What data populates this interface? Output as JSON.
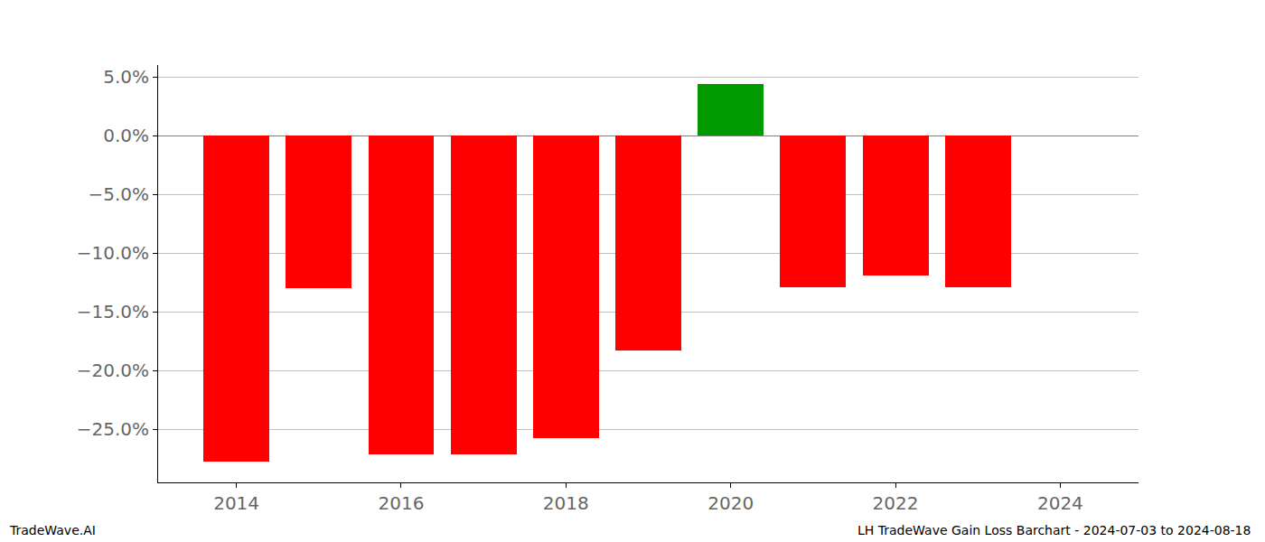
{
  "chart_data": {
    "type": "bar",
    "x": [
      2014,
      2015,
      2016,
      2017,
      2018,
      2019,
      2020,
      2021,
      2022,
      2023
    ],
    "values": [
      -27.7,
      -13.0,
      -27.1,
      -27.1,
      -25.7,
      -18.3,
      4.4,
      -12.9,
      -11.9,
      -12.9
    ],
    "colors": [
      "#ff0000",
      "#ff0000",
      "#ff0000",
      "#ff0000",
      "#ff0000",
      "#ff0000",
      "#009900",
      "#ff0000",
      "#ff0000",
      "#ff0000"
    ],
    "xlim": [
      2013.05,
      2024.95
    ],
    "xticks": [
      2014,
      2016,
      2018,
      2020,
      2022,
      2024
    ],
    "ylim": [
      -29.5,
      6.0
    ],
    "yticks": [
      {
        "value": -25,
        "label": "−25.0%"
      },
      {
        "value": -20,
        "label": "−20.0%"
      },
      {
        "value": -15,
        "label": "−15.0%"
      },
      {
        "value": -10,
        "label": "−10.0%"
      },
      {
        "value": -5,
        "label": "−5.0%"
      },
      {
        "value": 0,
        "label": "0.0%"
      },
      {
        "value": 5,
        "label": "5.0%"
      }
    ],
    "grid": true,
    "annotations": [
      "TradeWave.AI",
      "LH TradeWave Gain Loss Barchart - 2024-07-03 to 2024-08-18"
    ]
  }
}
